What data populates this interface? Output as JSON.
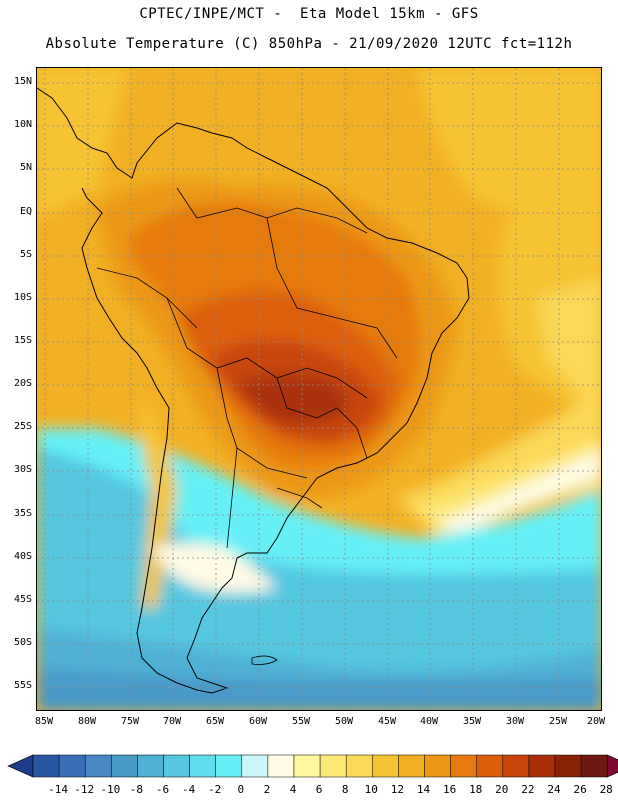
{
  "header": {
    "line1": "CPTEC/INPE/MCT -  Eta Model 15km - GFS",
    "line2": "Absolute Temperature (C) 850hPa - 21/09/2020 12UTC fct=112h"
  },
  "map": {
    "lat_labels": [
      "15N",
      "10N",
      "5N",
      "EQ",
      "5S",
      "10S",
      "15S",
      "20S",
      "25S",
      "30S",
      "35S",
      "40S",
      "45S",
      "50S",
      "55S"
    ],
    "lon_labels": [
      "85W",
      "80W",
      "75W",
      "70W",
      "65W",
      "60W",
      "55W",
      "50W",
      "45W",
      "40W",
      "35W",
      "30W",
      "25W",
      "20W"
    ]
  },
  "legend": {
    "labels": [
      "-14",
      "-12",
      "-10",
      "-8",
      "-6",
      "-4",
      "-2",
      "0",
      "2",
      "4",
      "6",
      "8",
      "10",
      "12",
      "14",
      "16",
      "18",
      "20",
      "22",
      "24",
      "26",
      "28"
    ],
    "colors": [
      "#1e3c8c",
      "#2a56a4",
      "#3a6fb8",
      "#4886c4",
      "#4a9ac8",
      "#4fb0d4",
      "#55c8e0",
      "#60dcec",
      "#66f0f6",
      "#ccf6fc",
      "#fffbe4",
      "#fff6a0",
      "#fde878",
      "#fad858",
      "#f6c432",
      "#f2b024",
      "#ec9816",
      "#e57a10",
      "#dc5e0c",
      "#c8460a",
      "#a93008",
      "#8a2208",
      "#6e1a12",
      "#800a30"
    ]
  }
}
